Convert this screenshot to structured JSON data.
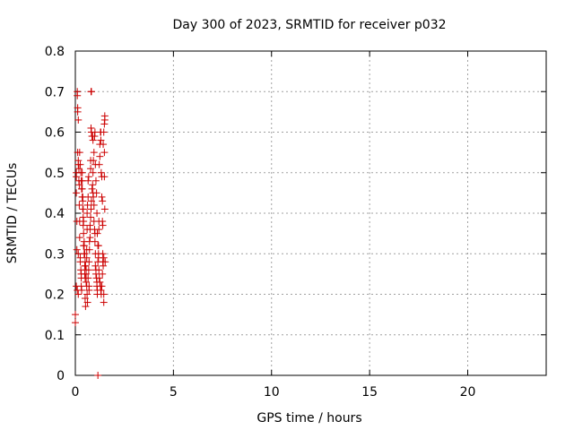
{
  "chart_data": {
    "type": "scatter",
    "title": "Day 300 of 2023, SRMTID for receiver p032",
    "xlabel": "GPS time / hours",
    "ylabel": "SRMTID / TECUs",
    "xlim": [
      0,
      24
    ],
    "ylim": [
      0,
      0.8
    ],
    "xticks": [
      0,
      5,
      10,
      15,
      20
    ],
    "yticks": [
      0,
      0.1,
      0.2,
      0.3,
      0.4,
      0.5,
      0.6,
      0.7,
      0.8
    ],
    "xtick_labels": [
      "0",
      "5",
      "10",
      "15",
      "20"
    ],
    "ytick_labels": [
      "0",
      "0.1",
      "0.2",
      "0.3",
      "0.4",
      "0.5",
      "0.6",
      "0.7",
      "0.8"
    ],
    "grid": true,
    "marker": "+",
    "color": "#cc0000",
    "series": [
      {
        "points": [
          [
            0.0,
            0.15
          ],
          [
            0.0,
            0.13
          ],
          [
            0.05,
            0.22
          ],
          [
            0.05,
            0.49
          ],
          [
            0.05,
            0.5
          ],
          [
            0.05,
            0.45
          ],
          [
            0.08,
            0.31
          ],
          [
            0.08,
            0.38
          ],
          [
            0.1,
            0.7
          ],
          [
            0.1,
            0.69
          ],
          [
            0.12,
            0.65
          ],
          [
            0.12,
            0.66
          ],
          [
            0.15,
            0.63
          ],
          [
            0.12,
            0.55
          ],
          [
            0.15,
            0.53
          ],
          [
            0.15,
            0.52
          ],
          [
            0.18,
            0.51
          ],
          [
            0.18,
            0.48
          ],
          [
            0.2,
            0.47
          ],
          [
            0.2,
            0.42
          ],
          [
            0.22,
            0.38
          ],
          [
            0.22,
            0.34
          ],
          [
            0.15,
            0.3
          ],
          [
            0.25,
            0.29
          ],
          [
            0.25,
            0.28
          ],
          [
            0.1,
            0.21
          ],
          [
            0.15,
            0.2
          ],
          [
            0.28,
            0.26
          ],
          [
            0.3,
            0.25
          ],
          [
            0.3,
            0.24
          ],
          [
            0.3,
            0.22
          ],
          [
            0.32,
            0.21
          ],
          [
            0.35,
            0.5
          ],
          [
            0.35,
            0.48
          ],
          [
            0.35,
            0.46
          ],
          [
            0.38,
            0.44
          ],
          [
            0.38,
            0.43
          ],
          [
            0.4,
            0.41
          ],
          [
            0.4,
            0.39
          ],
          [
            0.42,
            0.38
          ],
          [
            0.42,
            0.32
          ],
          [
            0.45,
            0.33
          ],
          [
            0.45,
            0.3
          ],
          [
            0.48,
            0.27
          ],
          [
            0.48,
            0.25
          ],
          [
            0.5,
            0.24
          ],
          [
            0.5,
            0.19
          ],
          [
            0.52,
            0.17
          ],
          [
            0.55,
            0.23
          ],
          [
            0.55,
            0.26
          ],
          [
            0.58,
            0.29
          ],
          [
            0.58,
            0.31
          ],
          [
            0.6,
            0.36
          ],
          [
            0.6,
            0.4
          ],
          [
            0.62,
            0.42
          ],
          [
            0.65,
            0.44
          ],
          [
            0.65,
            0.48
          ],
          [
            0.68,
            0.49
          ],
          [
            0.7,
            0.21
          ],
          [
            0.7,
            0.22
          ],
          [
            0.72,
            0.33
          ],
          [
            0.75,
            0.36
          ],
          [
            0.75,
            0.37
          ],
          [
            0.78,
            0.51
          ],
          [
            0.78,
            0.53
          ],
          [
            0.8,
            0.61
          ],
          [
            0.82,
            0.6
          ],
          [
            0.8,
            0.7
          ],
          [
            0.82,
            0.7
          ],
          [
            0.85,
            0.59
          ],
          [
            0.88,
            0.59
          ],
          [
            0.9,
            0.58
          ],
          [
            0.9,
            0.45
          ],
          [
            0.92,
            0.44
          ],
          [
            0.95,
            0.42
          ],
          [
            0.95,
            0.38
          ],
          [
            0.98,
            0.36
          ],
          [
            1.0,
            0.35
          ],
          [
            1.0,
            0.33
          ],
          [
            1.02,
            0.3
          ],
          [
            1.02,
            0.27
          ],
          [
            1.05,
            0.26
          ],
          [
            1.05,
            0.25
          ],
          [
            1.08,
            0.24
          ],
          [
            1.1,
            0.23
          ],
          [
            1.1,
            0.22
          ],
          [
            1.12,
            0.21
          ],
          [
            1.12,
            0.2
          ],
          [
            1.15,
            0.0
          ],
          [
            1.15,
            0.28
          ],
          [
            1.18,
            0.3
          ],
          [
            1.18,
            0.32
          ],
          [
            1.2,
            0.36
          ],
          [
            1.2,
            0.38
          ],
          [
            1.22,
            0.52
          ],
          [
            1.25,
            0.54
          ],
          [
            1.25,
            0.57
          ],
          [
            1.28,
            0.6
          ],
          [
            1.3,
            0.6
          ],
          [
            1.3,
            0.58
          ],
          [
            1.32,
            0.5
          ],
          [
            1.35,
            0.49
          ],
          [
            1.35,
            0.44
          ],
          [
            1.38,
            0.43
          ],
          [
            1.38,
            0.38
          ],
          [
            1.4,
            0.37
          ],
          [
            1.4,
            0.28
          ],
          [
            1.42,
            0.27
          ],
          [
            1.45,
            0.2
          ],
          [
            1.45,
            0.18
          ],
          [
            1.48,
            0.62
          ],
          [
            1.5,
            0.63
          ],
          [
            1.5,
            0.64
          ],
          [
            1.45,
            0.6
          ],
          [
            1.42,
            0.57
          ],
          [
            1.48,
            0.55
          ],
          [
            1.48,
            0.49
          ],
          [
            1.5,
            0.41
          ],
          [
            1.45,
            0.29
          ],
          [
            1.52,
            0.28
          ],
          [
            0.22,
            0.55
          ],
          [
            0.25,
            0.52
          ],
          [
            0.28,
            0.5
          ],
          [
            0.3,
            0.48
          ],
          [
            0.32,
            0.46
          ],
          [
            0.35,
            0.44
          ],
          [
            0.38,
            0.41
          ],
          [
            0.4,
            0.37
          ],
          [
            0.42,
            0.35
          ],
          [
            0.45,
            0.32
          ],
          [
            0.48,
            0.3
          ],
          [
            0.5,
            0.28
          ],
          [
            0.52,
            0.27
          ],
          [
            0.55,
            0.25
          ],
          [
            0.58,
            0.22
          ],
          [
            0.6,
            0.2
          ],
          [
            0.62,
            0.18
          ],
          [
            0.65,
            0.24
          ],
          [
            0.68,
            0.26
          ],
          [
            0.7,
            0.28
          ],
          [
            0.72,
            0.31
          ],
          [
            0.75,
            0.34
          ],
          [
            0.78,
            0.39
          ],
          [
            0.8,
            0.41
          ],
          [
            0.82,
            0.43
          ],
          [
            0.85,
            0.46
          ],
          [
            0.88,
            0.47
          ],
          [
            0.9,
            0.5
          ],
          [
            0.92,
            0.53
          ],
          [
            0.95,
            0.55
          ],
          [
            0.98,
            0.59
          ],
          [
            1.0,
            0.6
          ],
          [
            1.02,
            0.52
          ],
          [
            1.05,
            0.48
          ],
          [
            1.08,
            0.45
          ],
          [
            1.1,
            0.4
          ],
          [
            1.12,
            0.35
          ],
          [
            1.15,
            0.32
          ],
          [
            1.18,
            0.29
          ],
          [
            1.2,
            0.26
          ],
          [
            1.22,
            0.24
          ],
          [
            1.25,
            0.23
          ],
          [
            1.28,
            0.22
          ],
          [
            1.3,
            0.21
          ],
          [
            1.32,
            0.2
          ],
          [
            1.35,
            0.22
          ],
          [
            1.38,
            0.25
          ],
          [
            1.4,
            0.3
          ]
        ]
      }
    ]
  }
}
